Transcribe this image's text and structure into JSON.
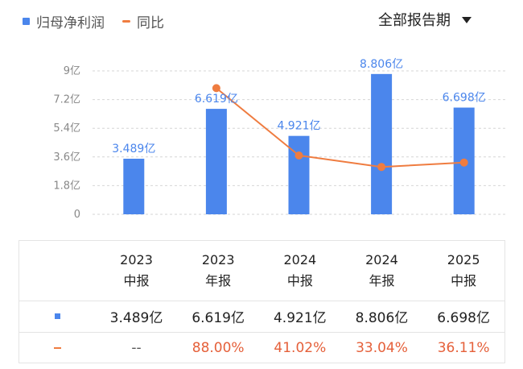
{
  "legend": {
    "bar_label": "归母净利润",
    "line_label": "同比"
  },
  "period_selector": {
    "value": "全部报告期",
    "icon": "caret-down-icon"
  },
  "colors": {
    "bar": "#4b86ec",
    "line": "#ef7c40",
    "pct_text": "#e5603a"
  },
  "chart_data": {
    "type": "bar",
    "categories": [
      [
        "2023",
        "中报"
      ],
      [
        "2023",
        "年报"
      ],
      [
        "2024",
        "中报"
      ],
      [
        "2024",
        "年报"
      ],
      [
        "2025",
        "中报"
      ]
    ],
    "y_ticks": [
      "0",
      "1.8亿",
      "3.6亿",
      "5.4亿",
      "7.2亿",
      "9亿"
    ],
    "ylim": [
      0,
      9
    ],
    "grid": true,
    "series": [
      {
        "name": "归母净利润",
        "type": "bar",
        "values": [
          3.489,
          6.619,
          4.921,
          8.806,
          6.698
        ],
        "labels": [
          "3.489亿",
          "6.619亿",
          "4.921亿",
          "8.806亿",
          "6.698亿"
        ]
      },
      {
        "name": "同比",
        "type": "line",
        "values": [
          null,
          88.0,
          41.02,
          33.04,
          36.11
        ],
        "labels": [
          "--",
          "88.00%",
          "41.02%",
          "33.04%",
          "36.11%"
        ]
      }
    ]
  },
  "table": {
    "headers": [
      {
        "year": "2023",
        "period": "中报"
      },
      {
        "year": "2023",
        "period": "年报"
      },
      {
        "year": "2024",
        "period": "中报"
      },
      {
        "year": "2024",
        "period": "年报"
      },
      {
        "year": "2025",
        "period": "中报"
      }
    ],
    "profit_row": [
      "3.489亿",
      "6.619亿",
      "4.921亿",
      "8.806亿",
      "6.698亿"
    ],
    "yoy_row": [
      "--",
      "88.00%",
      "41.02%",
      "33.04%",
      "36.11%"
    ]
  }
}
